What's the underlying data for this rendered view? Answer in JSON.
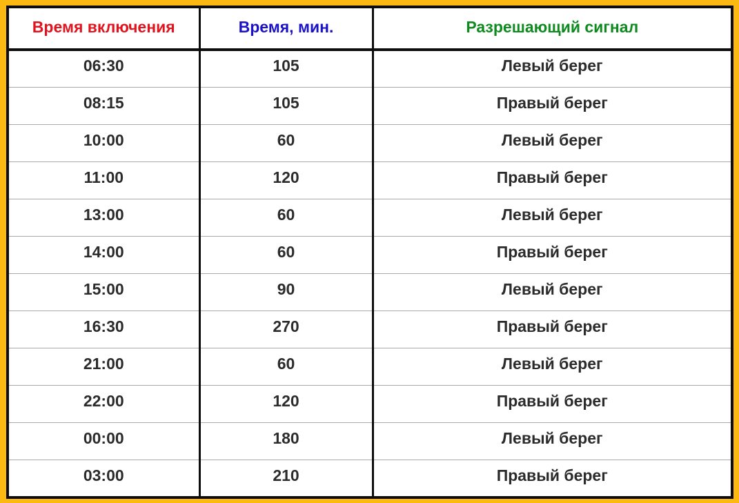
{
  "colors": {
    "frame_background": "#fcb912",
    "header_col1": "#e0141e",
    "header_col2": "#1a12c8",
    "header_col3": "#0e8a1e",
    "text": "#2b2b2b"
  },
  "headers": [
    "Время включения",
    "Время, мин.",
    "Разрешающий сигнал"
  ],
  "rows": [
    [
      "06:30",
      "105",
      "Левый берег"
    ],
    [
      "08:15",
      "105",
      "Правый берег"
    ],
    [
      "10:00",
      "60",
      "Левый берег"
    ],
    [
      "11:00",
      "120",
      "Правый берег"
    ],
    [
      "13:00",
      "60",
      "Левый берег"
    ],
    [
      "14:00",
      "60",
      "Правый берег"
    ],
    [
      "15:00",
      "90",
      "Левый берег"
    ],
    [
      "16:30",
      "270",
      "Правый берег"
    ],
    [
      "21:00",
      "60",
      "Левый берег"
    ],
    [
      "22:00",
      "120",
      "Правый берег"
    ],
    [
      "00:00",
      "180",
      "Левый берег"
    ],
    [
      "03:00",
      "210",
      "Правый берег"
    ]
  ]
}
